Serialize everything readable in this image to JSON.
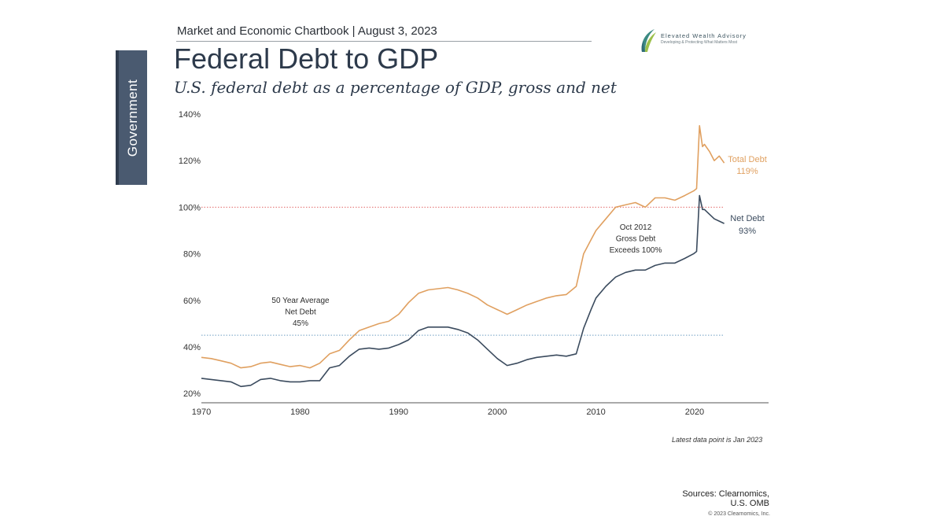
{
  "header": {
    "chartbook": "Market and Economic Chartbook | August 3, 2023"
  },
  "logo": {
    "name": "Elevated Wealth Advisory",
    "tagline": "Developing & Protecting What Matters Most"
  },
  "side_tab": {
    "label": "Government"
  },
  "colors": {
    "total_debt": "#e0a060",
    "net_debt": "#3b4b5e",
    "reference_100": "#e36a6a",
    "average_line": "#6f9fc3",
    "side_tab": "#4a5a70"
  },
  "chart_data": {
    "type": "line",
    "title": "Federal Debt to GDP",
    "subtitle": "U.S. federal debt as a percentage of GDP, gross and net",
    "xlim": [
      1970,
      2027.5
    ],
    "ylim": [
      16,
      140
    ],
    "yticks": [
      "20%",
      "40%",
      "60%",
      "80%",
      "100%",
      "120%",
      "140%"
    ],
    "ytick_values": [
      20,
      40,
      60,
      80,
      100,
      120,
      140
    ],
    "xticks": [
      "1970",
      "1980",
      "1990",
      "2000",
      "2010",
      "2020"
    ],
    "xtick_values": [
      1970,
      1980,
      1990,
      2000,
      2010,
      2020
    ],
    "reference_line": {
      "value": 100,
      "style": "dotted"
    },
    "average_line": {
      "value": 45,
      "style": "dotted",
      "x_end": 2023
    },
    "series": [
      {
        "name": "Total Debt",
        "end_label": "Total Debt",
        "end_value_label": "119%",
        "x": [
          1970,
          1971,
          1972,
          1973,
          1974,
          1975,
          1976,
          1977,
          1978,
          1979,
          1980,
          1981,
          1982,
          1983,
          1984,
          1985,
          1986,
          1987,
          1988,
          1989,
          1990,
          1991,
          1992,
          1993,
          1994,
          1995,
          1996,
          1997,
          1998,
          1999,
          2000,
          2001,
          2002,
          2003,
          2004,
          2005,
          2006,
          2007,
          2008,
          2008.75,
          2009.5,
          2010,
          2011,
          2012,
          2013,
          2014,
          2015,
          2016,
          2017,
          2018,
          2019,
          2019.9,
          2020.2,
          2020.5,
          2020.8,
          2021,
          2021.5,
          2022,
          2022.5,
          2023
        ],
        "values": [
          35.5,
          35,
          34,
          33,
          31,
          31.5,
          33,
          33.5,
          32.5,
          31.5,
          32,
          31,
          33,
          37,
          38.5,
          43,
          47,
          48.5,
          50,
          51,
          54,
          59,
          63,
          64.5,
          65,
          65.5,
          64.5,
          63,
          61,
          58,
          56,
          54,
          56,
          58,
          59.5,
          61,
          62,
          62.5,
          66,
          80,
          86,
          90,
          95,
          100,
          101,
          102,
          100,
          104,
          104,
          103,
          105,
          107,
          108,
          135,
          126,
          127,
          124,
          120,
          122,
          119
        ]
      },
      {
        "name": "Net Debt",
        "end_label": "Net Debt",
        "end_value_label": "93%",
        "x": [
          1970,
          1971,
          1972,
          1973,
          1974,
          1975,
          1976,
          1977,
          1978,
          1979,
          1980,
          1981,
          1982,
          1983,
          1984,
          1985,
          1986,
          1987,
          1988,
          1989,
          1990,
          1991,
          1992,
          1993,
          1994,
          1995,
          1996,
          1997,
          1998,
          1999,
          2000,
          2001,
          2002,
          2003,
          2004,
          2005,
          2006,
          2007,
          2008,
          2008.75,
          2009.5,
          2010,
          2011,
          2012,
          2013,
          2014,
          2015,
          2016,
          2017,
          2018,
          2019,
          2019.9,
          2020.2,
          2020.5,
          2020.8,
          2021,
          2021.5,
          2022,
          2022.5,
          2023
        ],
        "values": [
          26.5,
          26,
          25.5,
          25,
          23,
          23.5,
          26,
          26.5,
          25.5,
          25,
          25,
          25.5,
          25.5,
          31,
          32,
          36,
          39,
          39.5,
          39,
          39.5,
          41,
          43,
          47,
          48.5,
          48.5,
          48.5,
          47.5,
          46,
          43,
          39,
          35,
          32,
          33,
          34.5,
          35.5,
          36,
          36.5,
          36,
          37,
          48,
          56,
          61,
          66,
          70,
          72,
          73,
          73,
          75,
          76,
          76,
          78,
          80,
          81,
          105,
          99,
          99,
          97,
          95,
          94,
          93
        ]
      }
    ],
    "annotations": [
      {
        "id": "oct2012",
        "lines": [
          "Oct 2012",
          "Gross Debt",
          "Exceeds 100%"
        ]
      },
      {
        "id": "avg",
        "lines": [
          "50 Year Average",
          "Net Debt",
          "45%"
        ]
      }
    ]
  },
  "footer": {
    "note": "Latest data point is Jan 2023",
    "sources_line1": "Sources: Clearnomics,",
    "sources_line2": "U.S. OMB",
    "copyright": "© 2023 Clearnomics, Inc."
  }
}
